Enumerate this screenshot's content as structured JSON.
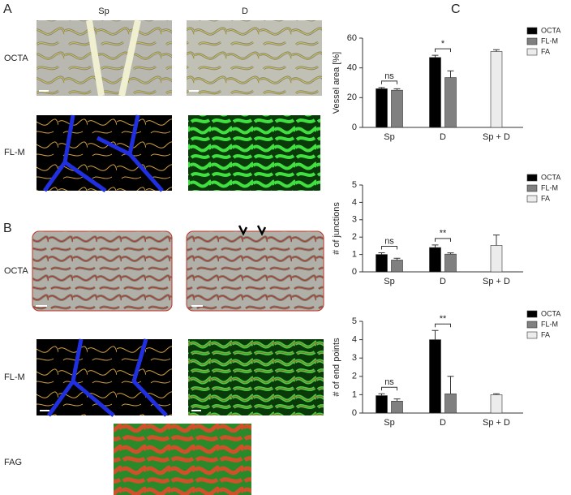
{
  "panels": {
    "a": "A",
    "b": "B",
    "c": "C",
    "sp": "Sp",
    "d": "D",
    "octa_a": "OCTA",
    "flm_a": "FL-M",
    "octa_b": "OCTA",
    "flm_b": "FL-M",
    "fag": "FAG"
  },
  "chart_data": [
    {
      "type": "bar",
      "y_label": "Vessel area [%]",
      "categories": [
        "Sp",
        "D",
        "Sp + D"
      ],
      "series": [
        {
          "name": "OCTA",
          "color": "#000000",
          "values": [
            26,
            47,
            null
          ],
          "errors": [
            0.8,
            1.5,
            null
          ]
        },
        {
          "name": "FL-M",
          "color": "#808080",
          "values": [
            25,
            33.5,
            null
          ],
          "errors": [
            1,
            4.5,
            null
          ]
        },
        {
          "name": "FA",
          "color": "#ececec",
          "values": [
            null,
            null,
            51
          ],
          "errors": [
            null,
            null,
            1.2
          ]
        }
      ],
      "annotations": [
        "ns",
        "*"
      ],
      "ylim": [
        0,
        60
      ],
      "yticks": [
        0,
        20,
        40,
        60
      ]
    },
    {
      "type": "bar",
      "y_label": "# of junctions",
      "categories": [
        "Sp",
        "D",
        "Sp + D"
      ],
      "series": [
        {
          "name": "OCTA",
          "color": "#000000",
          "values": [
            1.0,
            1.4,
            null
          ],
          "errors": [
            0.1,
            0.15,
            null
          ]
        },
        {
          "name": "FL-M",
          "color": "#808080",
          "values": [
            0.68,
            1.02,
            null
          ],
          "errors": [
            0.1,
            0.07,
            null
          ]
        },
        {
          "name": "FA",
          "color": "#ececec",
          "values": [
            null,
            null,
            1.52
          ],
          "errors": [
            null,
            null,
            0.6
          ]
        }
      ],
      "annotations": [
        "ns",
        "**"
      ],
      "ylim": [
        0,
        5
      ],
      "yticks": [
        0,
        1,
        2,
        3,
        4,
        5
      ]
    },
    {
      "type": "bar",
      "y_label": "# of end points",
      "categories": [
        "Sp",
        "D",
        "Sp + D"
      ],
      "series": [
        {
          "name": "OCTA",
          "color": "#000000",
          "values": [
            0.95,
            4.0,
            null
          ],
          "errors": [
            0.1,
            0.5,
            null
          ]
        },
        {
          "name": "FL-M",
          "color": "#808080",
          "values": [
            0.65,
            1.05,
            null
          ],
          "errors": [
            0.12,
            0.95,
            null
          ]
        },
        {
          "name": "FA",
          "color": "#ececec",
          "values": [
            null,
            null,
            1.0
          ],
          "errors": [
            null,
            null,
            0.05
          ]
        }
      ],
      "annotations": [
        "ns",
        "**"
      ],
      "ylim": [
        0,
        5
      ],
      "yticks": [
        0,
        1,
        2,
        3,
        4,
        5
      ]
    }
  ]
}
